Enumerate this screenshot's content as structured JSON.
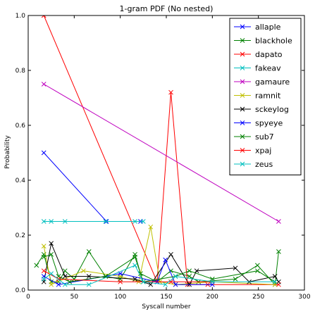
{
  "chart_data": {
    "type": "line",
    "title": "1-gram PDF (No nested)",
    "xlabel": "Syscall number",
    "ylabel": "Probability",
    "xlim": [
      0,
      300
    ],
    "ylim": [
      0,
      1.0
    ],
    "xticks": [
      0,
      50,
      100,
      150,
      200,
      250,
      300
    ],
    "yticks": [
      0.0,
      0.2,
      0.4,
      0.6,
      0.8,
      1.0
    ],
    "xtick_labels": [
      "0",
      "50",
      "100",
      "150",
      "200",
      "250",
      "300"
    ],
    "ytick_labels": [
      "0.0",
      "0.2",
      "0.4",
      "0.6",
      "0.8",
      "1.0"
    ],
    "grid": false,
    "legend_position": "top-right",
    "marker": "x",
    "series": [
      {
        "name": "allaple",
        "color": "#0000ff",
        "points": [
          [
            17,
            0.5
          ],
          [
            85,
            0.25
          ],
          [
            122,
            0.25
          ]
        ]
      },
      {
        "name": "blackhole",
        "color": "#008000",
        "points": [
          [
            9,
            0.09
          ],
          [
            17,
            0.13
          ],
          [
            25,
            0.03
          ],
          [
            33,
            0.03
          ],
          [
            40,
            0.07
          ],
          [
            50,
            0.04
          ],
          [
            66,
            0.14
          ],
          [
            84,
            0.05
          ],
          [
            100,
            0.04
          ],
          [
            116,
            0.13
          ],
          [
            122,
            0.06
          ],
          [
            140,
            0.03
          ],
          [
            155,
            0.07
          ],
          [
            175,
            0.05
          ],
          [
            185,
            0.03
          ],
          [
            225,
            0.04
          ],
          [
            249,
            0.09
          ],
          [
            268,
            0.02
          ],
          [
            272,
            0.14
          ]
        ]
      },
      {
        "name": "dapato",
        "color": "#ff0000",
        "points": [
          [
            17,
            1.0
          ],
          [
            140,
            0.03
          ],
          [
            155,
            0.72
          ],
          [
            173,
            0.02
          ],
          [
            195,
            0.02
          ],
          [
            272,
            0.02
          ]
        ]
      },
      {
        "name": "fakeav",
        "color": "#00bfbf",
        "points": [
          [
            17,
            0.25
          ],
          [
            25,
            0.25
          ],
          [
            40,
            0.25
          ],
          [
            84,
            0.25
          ],
          [
            116,
            0.25
          ],
          [
            125,
            0.25
          ]
        ]
      },
      {
        "name": "gamaure",
        "color": "#bf00bf",
        "points": [
          [
            17,
            0.75
          ],
          [
            272,
            0.25
          ]
        ]
      },
      {
        "name": "ramnit",
        "color": "#bfbf00",
        "points": [
          [
            17,
            0.16
          ],
          [
            25,
            0.02
          ],
          [
            60,
            0.07
          ],
          [
            100,
            0.05
          ],
          [
            120,
            0.03
          ],
          [
            133,
            0.23
          ],
          [
            143,
            0.03
          ],
          [
            160,
            0.02
          ],
          [
            200,
            0.03
          ],
          [
            268,
            0.02
          ]
        ]
      },
      {
        "name": "sckeylog",
        "color": "#000000",
        "points": [
          [
            17,
            0.03
          ],
          [
            25,
            0.17
          ],
          [
            40,
            0.05
          ],
          [
            66,
            0.05
          ],
          [
            116,
            0.04
          ],
          [
            133,
            0.02
          ],
          [
            155,
            0.13
          ],
          [
            175,
            0.02
          ],
          [
            183,
            0.07
          ],
          [
            225,
            0.08
          ],
          [
            240,
            0.03
          ],
          [
            268,
            0.05
          ],
          [
            272,
            0.03
          ]
        ]
      },
      {
        "name": "spyeye",
        "color": "#0000ff",
        "points": [
          [
            17,
            0.05
          ],
          [
            33,
            0.02
          ],
          [
            100,
            0.06
          ],
          [
            140,
            0.03
          ],
          [
            149,
            0.11
          ],
          [
            160,
            0.02
          ],
          [
            200,
            0.02
          ]
        ]
      },
      {
        "name": "sub7",
        "color": "#008000",
        "points": [
          [
            17,
            0.12
          ],
          [
            25,
            0.13
          ],
          [
            33,
            0.05
          ],
          [
            45,
            0.03
          ],
          [
            84,
            0.05
          ],
          [
            116,
            0.12
          ],
          [
            125,
            0.03
          ],
          [
            160,
            0.05
          ],
          [
            175,
            0.07
          ],
          [
            200,
            0.04
          ],
          [
            249,
            0.07
          ],
          [
            268,
            0.03
          ]
        ]
      },
      {
        "name": "xpaj",
        "color": "#ff0000",
        "points": [
          [
            17,
            0.07
          ],
          [
            33,
            0.04
          ],
          [
            100,
            0.03
          ],
          [
            155,
            0.03
          ],
          [
            200,
            0.03
          ]
        ]
      },
      {
        "name": "zeus",
        "color": "#00bfbf",
        "points": [
          [
            17,
            0.04
          ],
          [
            25,
            0.06
          ],
          [
            40,
            0.02
          ],
          [
            66,
            0.02
          ],
          [
            116,
            0.09
          ],
          [
            125,
            0.03
          ],
          [
            149,
            0.02
          ],
          [
            160,
            0.05
          ],
          [
            200,
            0.03
          ],
          [
            268,
            0.03
          ]
        ]
      }
    ]
  }
}
